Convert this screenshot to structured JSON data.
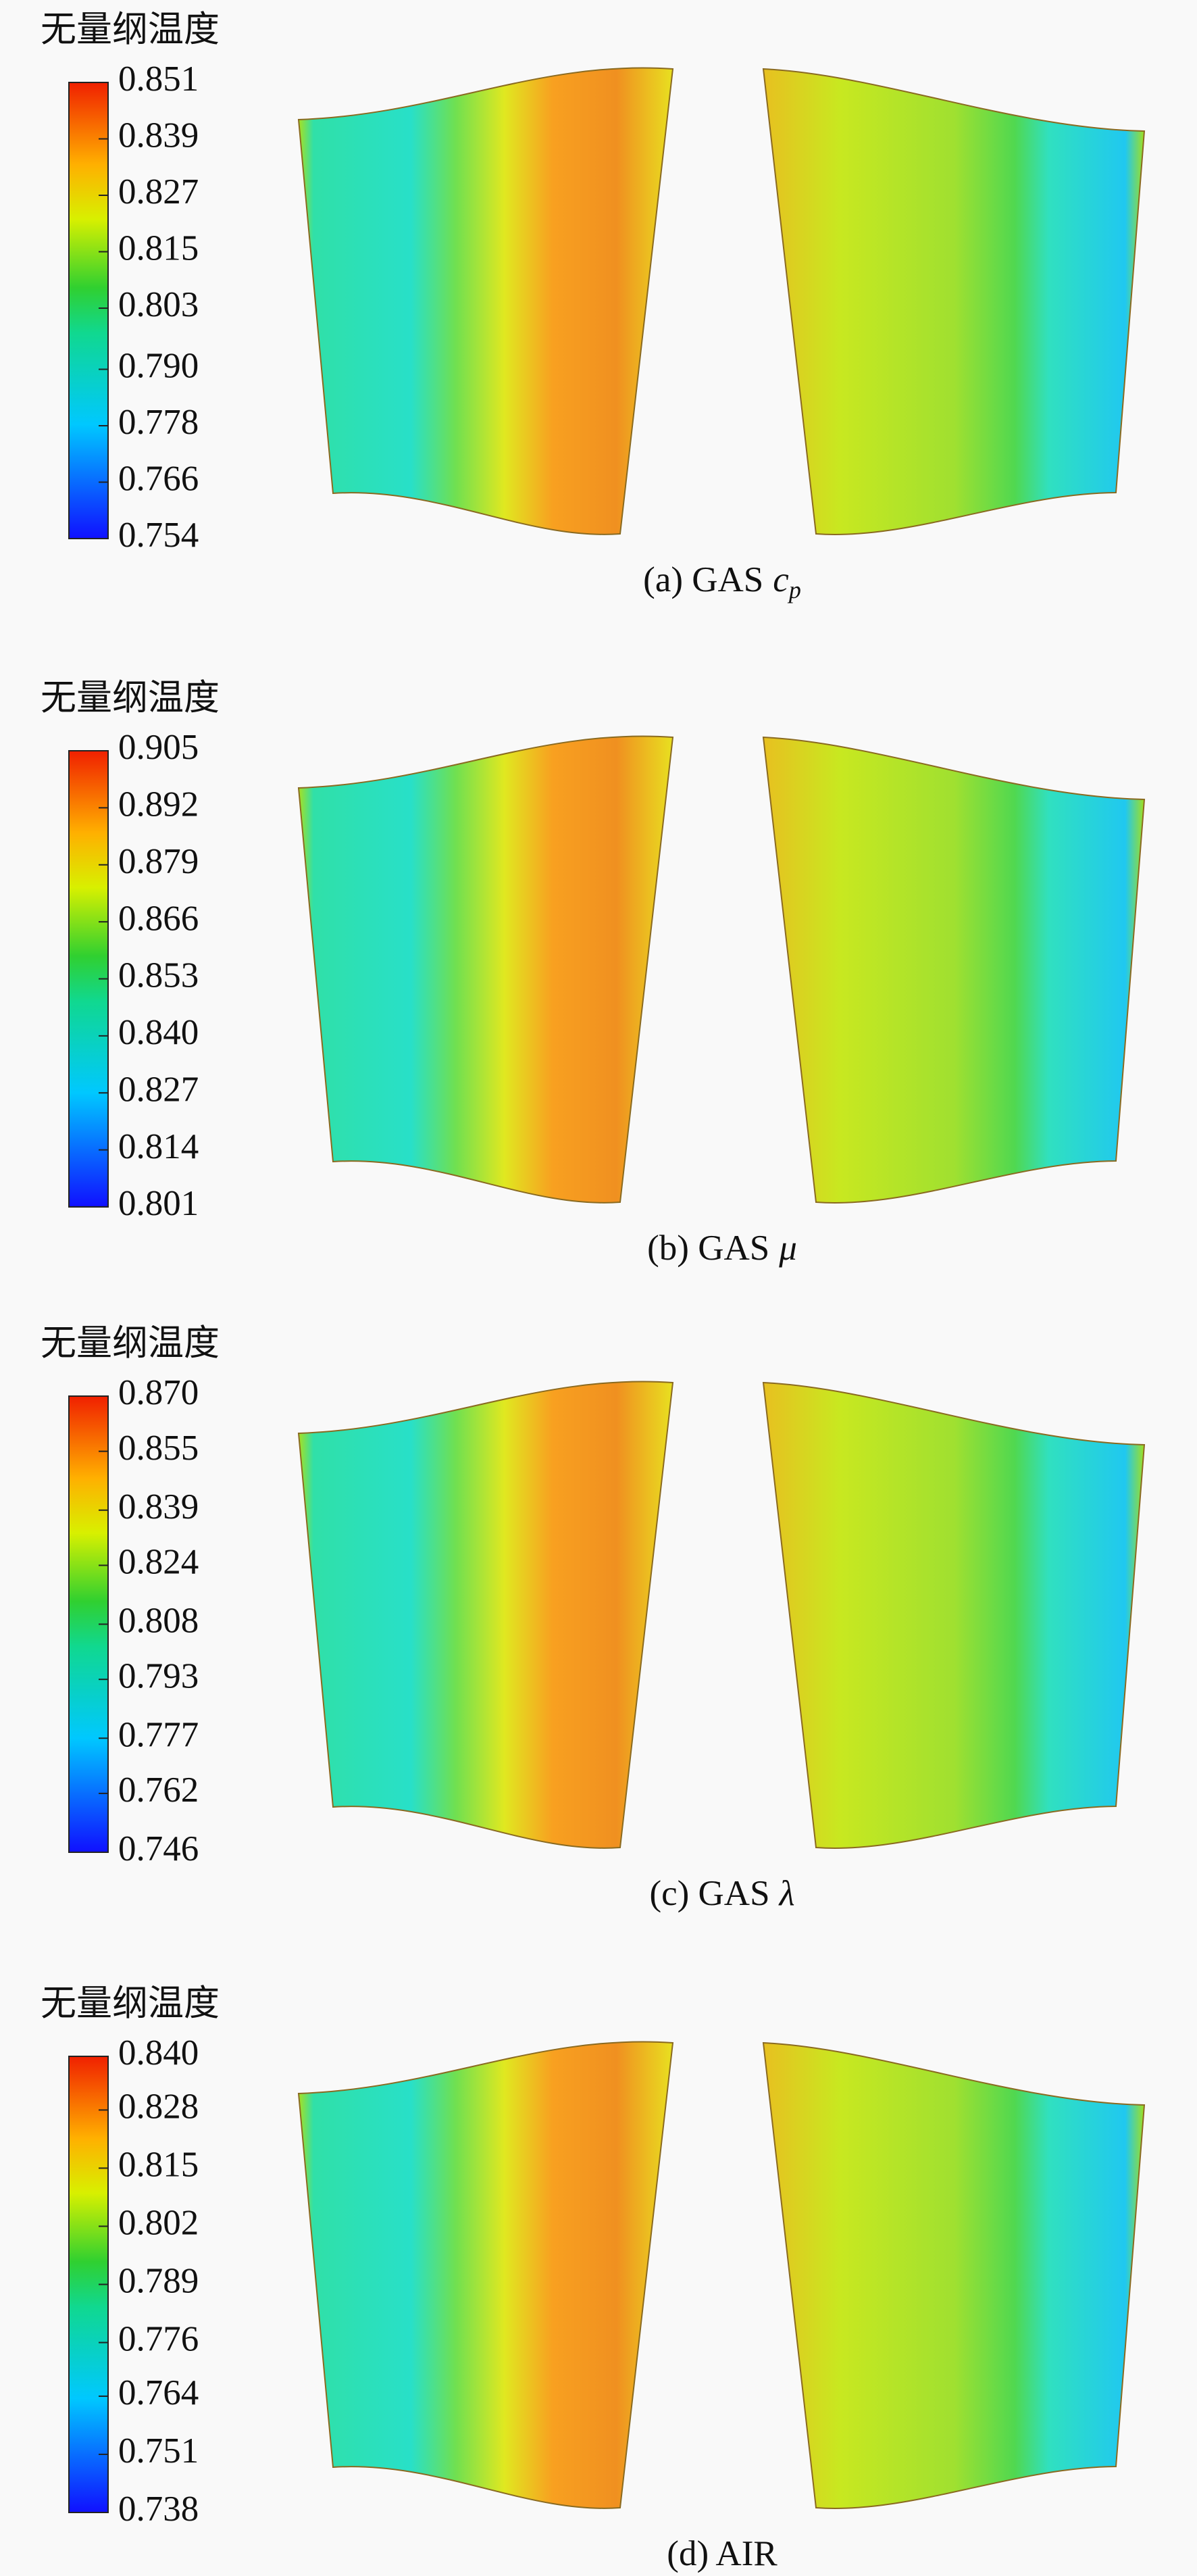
{
  "chart_data": [
    {
      "type": "contour",
      "title": "无量纲温度",
      "caption": "(a) GAS",
      "symbol": "c",
      "symbol_subscript": "p",
      "zlim": [
        0.754,
        0.851
      ],
      "zticks": [
        0.754,
        0.766,
        0.778,
        {
          "value": 0.79,
          "label": "0.790"
        },
        0.803,
        0.815,
        0.827,
        0.839,
        0.851
      ]
    },
    {
      "type": "contour",
      "title": "无量纲温度",
      "caption": "(b) GAS",
      "symbol": "μ",
      "zlim": [
        0.801,
        0.905
      ],
      "zticks": [
        0.801,
        0.814,
        0.827,
        {
          "value": 0.84,
          "label": "0.840"
        },
        0.853,
        0.866,
        0.879,
        0.892,
        0.905
      ]
    },
    {
      "type": "contour",
      "title": "无量纲温度",
      "caption": "(c) GAS",
      "symbol": "λ",
      "zlim": [
        0.746,
        0.87
      ],
      "zticks": [
        0.746,
        0.762,
        0.777,
        0.793,
        0.808,
        0.824,
        0.839,
        0.855,
        {
          "value": 0.87,
          "label": "0.870"
        }
      ]
    },
    {
      "type": "contour",
      "title": "无量纲温度",
      "caption": "(d) AIR",
      "zlim": [
        0.738,
        0.84
      ],
      "zticks": [
        0.738,
        0.751,
        0.764,
        0.776,
        0.789,
        0.802,
        0.815,
        0.828,
        {
          "value": 0.84,
          "label": "0.840"
        }
      ]
    }
  ]
}
